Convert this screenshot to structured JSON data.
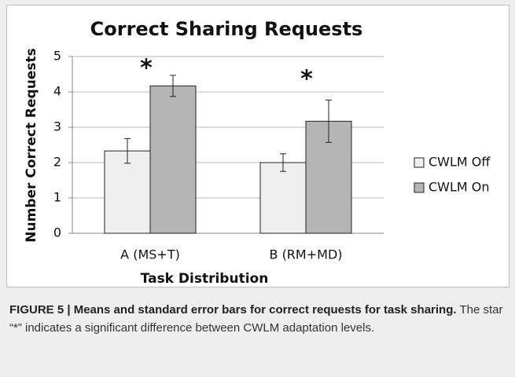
{
  "chart_data": {
    "type": "bar",
    "title": "Correct Sharing Requests",
    "y_label": "Number Correct Requests",
    "x_label": "Task Distribution",
    "categories": [
      "A (MS+T)",
      "B (RM+MD)"
    ],
    "series": [
      {
        "name": "CWLM Off",
        "color": "#efefef",
        "values": [
          2.33,
          2.0
        ],
        "errors": [
          0.35,
          0.25
        ]
      },
      {
        "name": "CWLM On",
        "color": "#b5b5b5",
        "values": [
          4.17,
          3.17
        ],
        "errors": [
          0.3,
          0.6
        ]
      }
    ],
    "annotations": [
      "*",
      "*"
    ],
    "ylim": [
      0,
      5
    ],
    "yticks": [
      0,
      1,
      2,
      3,
      4,
      5
    ],
    "grid": true,
    "legend": "right"
  },
  "caption": {
    "bold": "FIGURE 5 | Means and standard error bars for correct requests for task sharing.",
    "text": "The star “*” indicates a significant difference between CWLM adaptation levels."
  }
}
